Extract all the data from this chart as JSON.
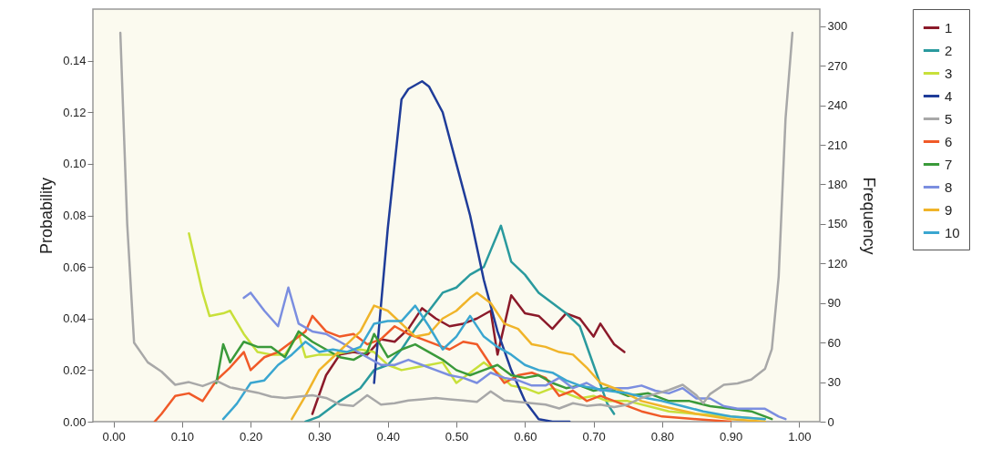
{
  "chart_data": {
    "type": "line",
    "ylabel": "Probability",
    "y2label": "Frequency",
    "legend": "right",
    "xlim": [
      -0.03,
      1.03
    ],
    "xticks": [
      {
        "value": 0,
        "label": "0.00"
      },
      {
        "value": 0.1,
        "label": "0.10"
      },
      {
        "value": 0.2,
        "label": "0.20"
      },
      {
        "value": 0.3,
        "label": "0.30"
      },
      {
        "value": 0.4,
        "label": "0.40"
      },
      {
        "value": 0.5,
        "label": "0.50"
      },
      {
        "value": 0.6,
        "label": "0.60"
      },
      {
        "value": 0.7,
        "label": "0.70"
      },
      {
        "value": 0.8,
        "label": "0.80"
      },
      {
        "value": 0.9,
        "label": "0.90"
      },
      {
        "value": 1,
        "label": "1.00"
      }
    ],
    "ylim": [
      0,
      0.16
    ],
    "yticks": [
      {
        "value": 0,
        "label": "0.00"
      },
      0.02,
      0.04,
      0.06,
      0.08,
      {
        "value": 0.1,
        "label": "0.10"
      },
      0.12,
      0.14
    ],
    "y2lim": [
      0,
      313
    ],
    "y2ticks": [
      0,
      30,
      60,
      90,
      120,
      150,
      180,
      210,
      240,
      270,
      300
    ],
    "series": [
      {
        "name": "1",
        "color": "#8b1a2a",
        "x": [
          0.29,
          0.31,
          0.33,
          0.35,
          0.37,
          0.39,
          0.41,
          0.43,
          0.45,
          0.47,
          0.49,
          0.51,
          0.53,
          0.55,
          0.56,
          0.58,
          0.6,
          0.62,
          0.64,
          0.66,
          0.68,
          0.7,
          0.71,
          0.73,
          0.745
        ],
        "values": [
          0.003,
          0.018,
          0.026,
          0.027,
          0.026,
          0.032,
          0.031,
          0.036,
          0.044,
          0.04,
          0.037,
          0.038,
          0.04,
          0.043,
          0.026,
          0.049,
          0.042,
          0.041,
          0.036,
          0.042,
          0.04,
          0.033,
          0.038,
          0.03,
          0.027
        ]
      },
      {
        "name": "2",
        "color": "#2a9a9e",
        "x": [
          0.28,
          0.3,
          0.33,
          0.36,
          0.38,
          0.4,
          0.42,
          0.44,
          0.46,
          0.48,
          0.5,
          0.52,
          0.54,
          0.565,
          0.58,
          0.6,
          0.62,
          0.64,
          0.66,
          0.68,
          0.7,
          0.72,
          0.73
        ],
        "values": [
          0.0,
          0.002,
          0.008,
          0.013,
          0.02,
          0.022,
          0.028,
          0.036,
          0.043,
          0.05,
          0.052,
          0.057,
          0.06,
          0.076,
          0.062,
          0.057,
          0.05,
          0.046,
          0.042,
          0.037,
          0.022,
          0.007,
          0.003
        ]
      },
      {
        "name": "3",
        "color": "#c8e03a",
        "x": [
          0.11,
          0.13,
          0.14,
          0.16,
          0.17,
          0.19,
          0.21,
          0.23,
          0.25,
          0.27,
          0.28,
          0.3,
          0.32,
          0.34,
          0.36,
          0.38,
          0.4,
          0.42,
          0.44,
          0.46,
          0.48,
          0.5,
          0.52,
          0.54,
          0.56,
          0.58,
          0.6,
          0.62,
          0.64,
          0.66,
          0.68,
          0.7,
          0.72,
          0.75,
          0.78,
          0.81,
          0.85,
          0.9,
          0.95
        ],
        "values": [
          0.073,
          0.05,
          0.041,
          0.042,
          0.043,
          0.034,
          0.027,
          0.026,
          0.026,
          0.034,
          0.025,
          0.026,
          0.026,
          0.027,
          0.028,
          0.027,
          0.022,
          0.02,
          0.021,
          0.022,
          0.023,
          0.015,
          0.019,
          0.023,
          0.019,
          0.014,
          0.013,
          0.011,
          0.013,
          0.011,
          0.009,
          0.01,
          0.008,
          0.008,
          0.006,
          0.004,
          0.003,
          0.002,
          0.001
        ]
      },
      {
        "name": "4",
        "color": "#1f3c99",
        "x": [
          0.38,
          0.4,
          0.42,
          0.43,
          0.45,
          0.46,
          0.48,
          0.5,
          0.52,
          0.54,
          0.56,
          0.58,
          0.6,
          0.62,
          0.64,
          0.665
        ],
        "values": [
          0.015,
          0.075,
          0.125,
          0.129,
          0.132,
          0.13,
          0.12,
          0.1,
          0.08,
          0.055,
          0.035,
          0.02,
          0.008,
          0.001,
          0.0,
          0.0
        ]
      },
      {
        "name": "5",
        "color": "#a8a8a8",
        "axis": "y2",
        "x": [
          0.01,
          0.02,
          0.03,
          0.05,
          0.07,
          0.09,
          0.11,
          0.13,
          0.15,
          0.17,
          0.19,
          0.21,
          0.23,
          0.25,
          0.27,
          0.29,
          0.31,
          0.33,
          0.35,
          0.37,
          0.39,
          0.41,
          0.43,
          0.45,
          0.47,
          0.49,
          0.51,
          0.53,
          0.55,
          0.57,
          0.59,
          0.61,
          0.63,
          0.65,
          0.67,
          0.69,
          0.71,
          0.73,
          0.75,
          0.77,
          0.79,
          0.81,
          0.83,
          0.85,
          0.86,
          0.87,
          0.89,
          0.91,
          0.93,
          0.95,
          0.96,
          0.97,
          0.98,
          0.99
        ],
        "values": [
          295,
          150,
          60,
          45,
          38,
          28,
          30,
          27,
          31,
          26,
          24,
          22,
          19,
          18,
          19,
          20,
          18,
          13,
          12,
          20,
          13,
          14,
          16,
          17,
          18,
          17,
          16,
          15,
          23,
          16,
          15,
          14,
          13,
          10,
          14,
          12,
          13,
          11,
          13,
          18,
          21,
          24,
          28,
          20,
          14,
          21,
          28,
          29,
          32,
          40,
          55,
          110,
          230,
          295
        ]
      },
      {
        "name": "6",
        "color": "#f05a28",
        "x": [
          0.06,
          0.07,
          0.09,
          0.11,
          0.13,
          0.15,
          0.17,
          0.19,
          0.2,
          0.22,
          0.24,
          0.26,
          0.28,
          0.29,
          0.31,
          0.33,
          0.35,
          0.37,
          0.39,
          0.41,
          0.43,
          0.45,
          0.47,
          0.49,
          0.51,
          0.53,
          0.55,
          0.57,
          0.59,
          0.61,
          0.63,
          0.65,
          0.67,
          0.69,
          0.71,
          0.74,
          0.77,
          0.8,
          0.85,
          0.9
        ],
        "values": [
          0.0,
          0.003,
          0.01,
          0.011,
          0.008,
          0.016,
          0.021,
          0.027,
          0.02,
          0.025,
          0.027,
          0.031,
          0.035,
          0.041,
          0.035,
          0.033,
          0.034,
          0.03,
          0.032,
          0.037,
          0.034,
          0.032,
          0.03,
          0.028,
          0.031,
          0.03,
          0.022,
          0.015,
          0.018,
          0.019,
          0.017,
          0.01,
          0.012,
          0.008,
          0.01,
          0.007,
          0.004,
          0.002,
          0.001,
          0.0
        ]
      },
      {
        "name": "7",
        "color": "#3a9a3a",
        "x": [
          0.15,
          0.16,
          0.17,
          0.19,
          0.21,
          0.23,
          0.25,
          0.27,
          0.29,
          0.31,
          0.33,
          0.35,
          0.37,
          0.38,
          0.4,
          0.42,
          0.44,
          0.46,
          0.48,
          0.5,
          0.52,
          0.54,
          0.56,
          0.58,
          0.6,
          0.62,
          0.64,
          0.66,
          0.68,
          0.7,
          0.72,
          0.75,
          0.78,
          0.81,
          0.84,
          0.87,
          0.9,
          0.93,
          0.96
        ],
        "values": [
          0.015,
          0.03,
          0.023,
          0.031,
          0.029,
          0.029,
          0.025,
          0.035,
          0.031,
          0.028,
          0.025,
          0.024,
          0.027,
          0.034,
          0.025,
          0.028,
          0.03,
          0.027,
          0.024,
          0.02,
          0.018,
          0.02,
          0.022,
          0.018,
          0.017,
          0.018,
          0.015,
          0.013,
          0.014,
          0.012,
          0.013,
          0.01,
          0.011,
          0.008,
          0.008,
          0.006,
          0.005,
          0.004,
          0.001
        ]
      },
      {
        "name": "8",
        "color": "#7b8ee0",
        "x": [
          0.19,
          0.2,
          0.22,
          0.24,
          0.255,
          0.27,
          0.29,
          0.31,
          0.33,
          0.35,
          0.37,
          0.39,
          0.41,
          0.43,
          0.45,
          0.47,
          0.49,
          0.51,
          0.53,
          0.55,
          0.57,
          0.59,
          0.61,
          0.63,
          0.65,
          0.67,
          0.69,
          0.71,
          0.73,
          0.75,
          0.77,
          0.79,
          0.81,
          0.83,
          0.85,
          0.87,
          0.89,
          0.91,
          0.93,
          0.95,
          0.97,
          0.98
        ],
        "values": [
          0.048,
          0.05,
          0.043,
          0.037,
          0.052,
          0.038,
          0.035,
          0.034,
          0.031,
          0.028,
          0.025,
          0.022,
          0.022,
          0.024,
          0.022,
          0.02,
          0.018,
          0.017,
          0.015,
          0.019,
          0.017,
          0.016,
          0.014,
          0.014,
          0.017,
          0.013,
          0.015,
          0.012,
          0.013,
          0.013,
          0.014,
          0.012,
          0.011,
          0.013,
          0.009,
          0.009,
          0.006,
          0.005,
          0.005,
          0.005,
          0.002,
          0.001
        ]
      },
      {
        "name": "9",
        "color": "#f0b429",
        "x": [
          0.26,
          0.28,
          0.3,
          0.32,
          0.34,
          0.36,
          0.38,
          0.4,
          0.42,
          0.44,
          0.46,
          0.48,
          0.5,
          0.52,
          0.53,
          0.55,
          0.57,
          0.59,
          0.61,
          0.63,
          0.65,
          0.67,
          0.69,
          0.71,
          0.74,
          0.77,
          0.8,
          0.85,
          0.9,
          0.95
        ],
        "values": [
          0.001,
          0.01,
          0.02,
          0.025,
          0.03,
          0.035,
          0.045,
          0.043,
          0.038,
          0.033,
          0.034,
          0.04,
          0.043,
          0.048,
          0.05,
          0.046,
          0.038,
          0.036,
          0.03,
          0.029,
          0.027,
          0.026,
          0.021,
          0.015,
          0.012,
          0.008,
          0.006,
          0.003,
          0.001,
          0.0
        ]
      },
      {
        "name": "10",
        "color": "#3aa6d0",
        "x": [
          0.16,
          0.18,
          0.2,
          0.22,
          0.24,
          0.26,
          0.28,
          0.3,
          0.32,
          0.34,
          0.36,
          0.38,
          0.4,
          0.42,
          0.44,
          0.46,
          0.48,
          0.5,
          0.52,
          0.54,
          0.56,
          0.58,
          0.6,
          0.62,
          0.64,
          0.66,
          0.68,
          0.7,
          0.72,
          0.75,
          0.78,
          0.8,
          0.83,
          0.86,
          0.9,
          0.95
        ],
        "values": [
          0.001,
          0.007,
          0.015,
          0.016,
          0.022,
          0.026,
          0.031,
          0.027,
          0.028,
          0.027,
          0.029,
          0.038,
          0.039,
          0.039,
          0.045,
          0.037,
          0.028,
          0.033,
          0.041,
          0.033,
          0.029,
          0.026,
          0.022,
          0.02,
          0.019,
          0.016,
          0.014,
          0.013,
          0.012,
          0.011,
          0.009,
          0.008,
          0.006,
          0.004,
          0.002,
          0.001
        ]
      }
    ]
  }
}
